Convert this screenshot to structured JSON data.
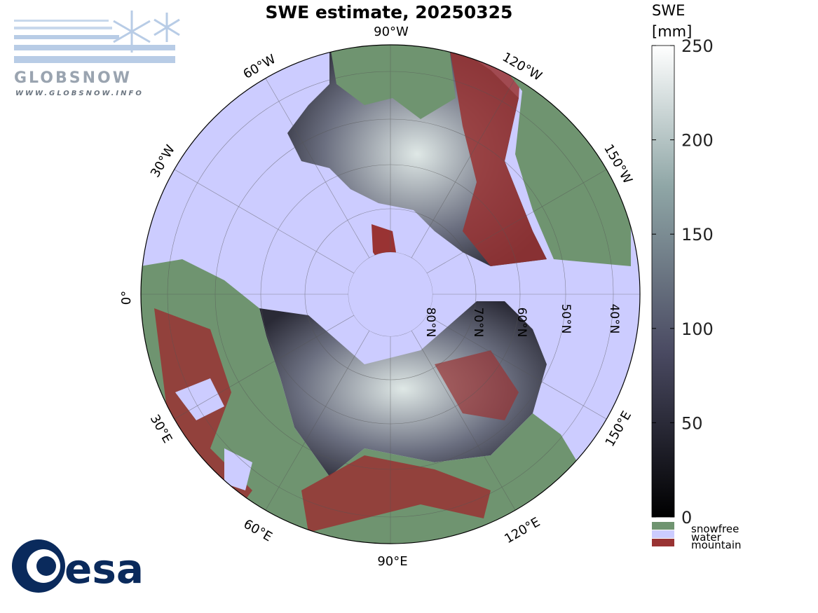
{
  "title": "SWE estimate, 20250325",
  "longitude_labels": [
    "90°W",
    "120°W",
    "150°W",
    "60°W",
    "30°W",
    "0°",
    "30°E",
    "60°E",
    "90°E",
    "120°E",
    "150°E"
  ],
  "latitude_labels": [
    "80°N",
    "70°N",
    "60°N",
    "50°N",
    "40°N"
  ],
  "colorbar": {
    "label": [
      "SWE",
      "[mm]"
    ],
    "lim": [
      0,
      250
    ],
    "ticks": [
      0,
      50,
      100,
      150,
      200,
      250
    ]
  },
  "legend": [
    "snowfree",
    "water",
    "mountain"
  ],
  "logos": {
    "globsnow": "GLOBSNOW",
    "globsnow_url": "WWW.GLOBSNOW.INFO",
    "esa": "esa"
  }
}
